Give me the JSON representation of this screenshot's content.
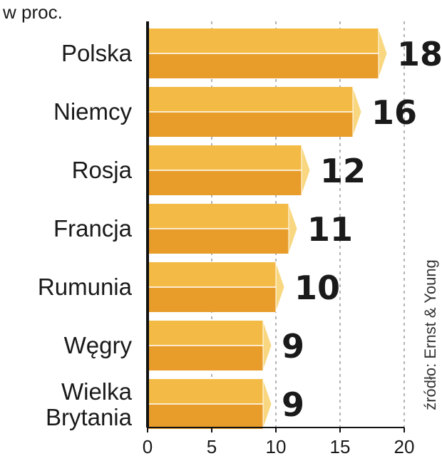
{
  "chart_data": {
    "type": "bar",
    "orientation": "horizontal",
    "unit_label": "w proc.",
    "categories": [
      "Polska",
      "Niemcy",
      "Rosja",
      "Francja",
      "Rumunia",
      "Węgry",
      "Wielka Brytania"
    ],
    "category_lines": [
      [
        "Polska"
      ],
      [
        "Niemcy"
      ],
      [
        "Rosja"
      ],
      [
        "Francja"
      ],
      [
        "Rumunia"
      ],
      [
        "Węgry"
      ],
      [
        "Wielka",
        "Brytania"
      ]
    ],
    "values": [
      18,
      16,
      12,
      11,
      10,
      9,
      9
    ],
    "value_labels": [
      "18",
      "16",
      "12",
      "11",
      "10",
      "9",
      "9"
    ],
    "xlim": [
      0,
      20
    ],
    "xticks": [
      0,
      5,
      10,
      15,
      20
    ],
    "xtick_labels": [
      "0",
      "5",
      "10",
      "15",
      "20"
    ],
    "grid": "vertical dashed",
    "source": "źródło: Ernst & Young",
    "colors": {
      "bar_top": "#f3bb45",
      "bar_bottom": "#e89d2a",
      "bar_tip": "#f8d780",
      "bar_edge": "#ffffff",
      "grid": "#9a9a9a",
      "text": "#1a1a1a"
    }
  }
}
